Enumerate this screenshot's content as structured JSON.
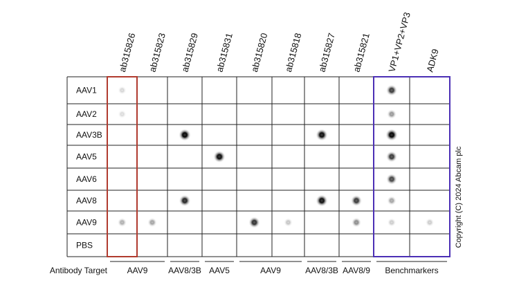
{
  "figure": {
    "columns": [
      {
        "label": "ab315826",
        "color": "#c0392b"
      },
      {
        "label": "ab315823",
        "color": "#222222"
      },
      {
        "label": "ab315829",
        "color": "#222222"
      },
      {
        "label": "ab315831",
        "color": "#222222"
      },
      {
        "label": "ab315820",
        "color": "#222222"
      },
      {
        "label": "ab315818",
        "color": "#222222"
      },
      {
        "label": "ab315827",
        "color": "#222222"
      },
      {
        "label": "ab315821",
        "color": "#222222"
      },
      {
        "label": "VP1+VP2+VP3",
        "color": "#1a1acd"
      },
      {
        "label": "ADK9",
        "color": "#1a1acd"
      }
    ],
    "rows": [
      "AAV1",
      "AAV2",
      "AAV3B",
      "AAV5",
      "AAV6",
      "AAV8",
      "AAV9",
      "PBS"
    ],
    "antibody_target_label": "Antibody Target",
    "groups": [
      {
        "label": "AAV9",
        "cols": [
          0,
          1
        ]
      },
      {
        "label": "AAV8/3B",
        "cols": [
          2,
          2
        ]
      },
      {
        "label": "AAV5",
        "cols": [
          3,
          3
        ]
      },
      {
        "label": "AAV9",
        "cols": [
          4,
          5
        ]
      },
      {
        "label": "AAV8/3B",
        "cols": [
          6,
          6
        ]
      },
      {
        "label": "AAV8/9",
        "cols": [
          7,
          7
        ]
      },
      {
        "label": "Benchmarkers",
        "cols": [
          8,
          9
        ]
      }
    ],
    "copyright": "Copyright (C) 2024 Abcam plc",
    "highlight_colors": {
      "red_box": "#b03a2e",
      "blue_box": "#4b2fb5"
    },
    "dots": [
      {
        "row": 2,
        "col": 2,
        "intensity": 1.0
      },
      {
        "row": 2,
        "col": 6,
        "intensity": 0.95
      },
      {
        "row": 3,
        "col": 3,
        "intensity": 0.95
      },
      {
        "row": 5,
        "col": 2,
        "intensity": 0.85
      },
      {
        "row": 5,
        "col": 6,
        "intensity": 0.95
      },
      {
        "row": 5,
        "col": 7,
        "intensity": 0.75
      },
      {
        "row": 6,
        "col": 0,
        "intensity": 0.25
      },
      {
        "row": 6,
        "col": 1,
        "intensity": 0.3
      },
      {
        "row": 6,
        "col": 4,
        "intensity": 0.8
      },
      {
        "row": 6,
        "col": 5,
        "intensity": 0.15
      },
      {
        "row": 6,
        "col": 7,
        "intensity": 0.4
      },
      {
        "row": 0,
        "col": 0,
        "intensity": 0.08
      },
      {
        "row": 1,
        "col": 0,
        "intensity": 0.06
      },
      {
        "row": 0,
        "col": 8,
        "intensity": 0.75
      },
      {
        "row": 1,
        "col": 8,
        "intensity": 0.35
      },
      {
        "row": 2,
        "col": 8,
        "intensity": 1.0
      },
      {
        "row": 3,
        "col": 8,
        "intensity": 0.75
      },
      {
        "row": 4,
        "col": 8,
        "intensity": 0.7
      },
      {
        "row": 5,
        "col": 8,
        "intensity": 0.3
      },
      {
        "row": 6,
        "col": 8,
        "intensity": 0.12
      },
      {
        "row": 6,
        "col": 9,
        "intensity": 0.12
      }
    ]
  }
}
